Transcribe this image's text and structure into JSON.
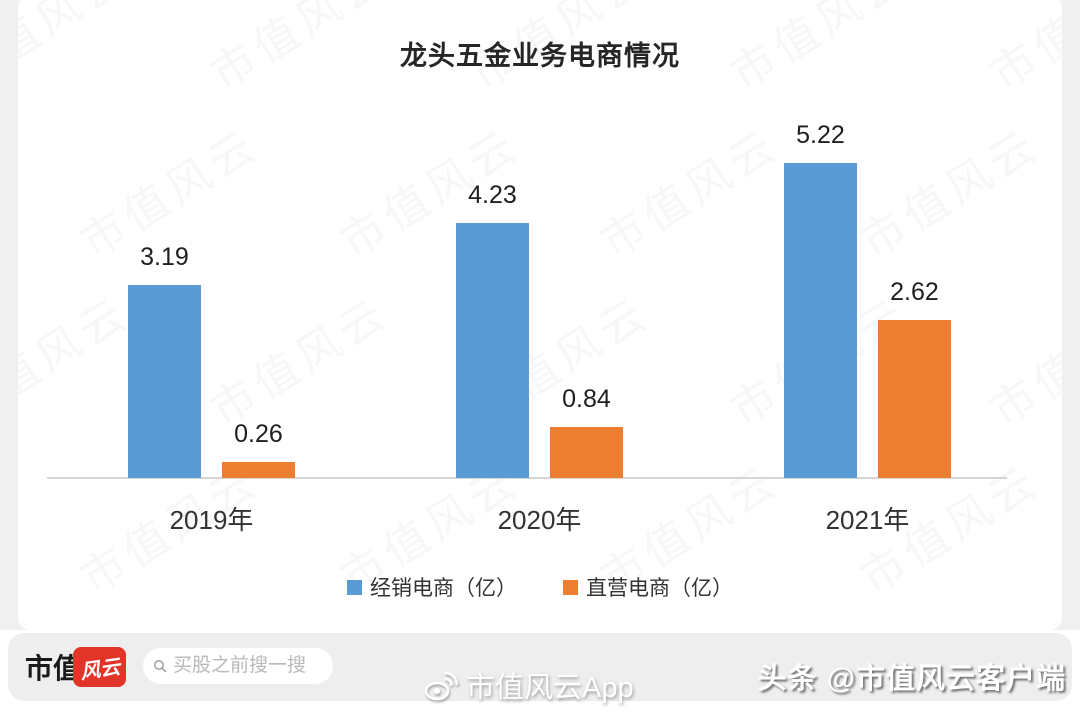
{
  "chart_data": {
    "type": "bar",
    "title": "龙头五金业务电商情况",
    "categories": [
      "2019年",
      "2020年",
      "2021年"
    ],
    "series": [
      {
        "name": "经销电商（亿）",
        "color": "#5B9BD5",
        "values": [
          3.19,
          4.23,
          5.22
        ]
      },
      {
        "name": "直营电商（亿）",
        "color": "#ED7D31",
        "values": [
          0.26,
          0.84,
          2.62
        ]
      }
    ],
    "value_labels": [
      "3.19",
      "0.26",
      "4.23",
      "0.84",
      "5.22",
      "2.62"
    ],
    "xlabel": "",
    "ylabel": "",
    "ylim": [
      0,
      5.5
    ],
    "grid": false,
    "legend_position": "bottom",
    "axis_color": "#d6d6d6"
  },
  "watermark": {
    "diagonal_text": "市值风云",
    "weibo_text": "市值风云App",
    "credit_text": "头条 @市值风云客户端"
  },
  "footer": {
    "brand_text": "市值",
    "logo_text": "风云",
    "logo_color": "#e2352a",
    "search_placeholder": "买股之前搜一搜"
  }
}
